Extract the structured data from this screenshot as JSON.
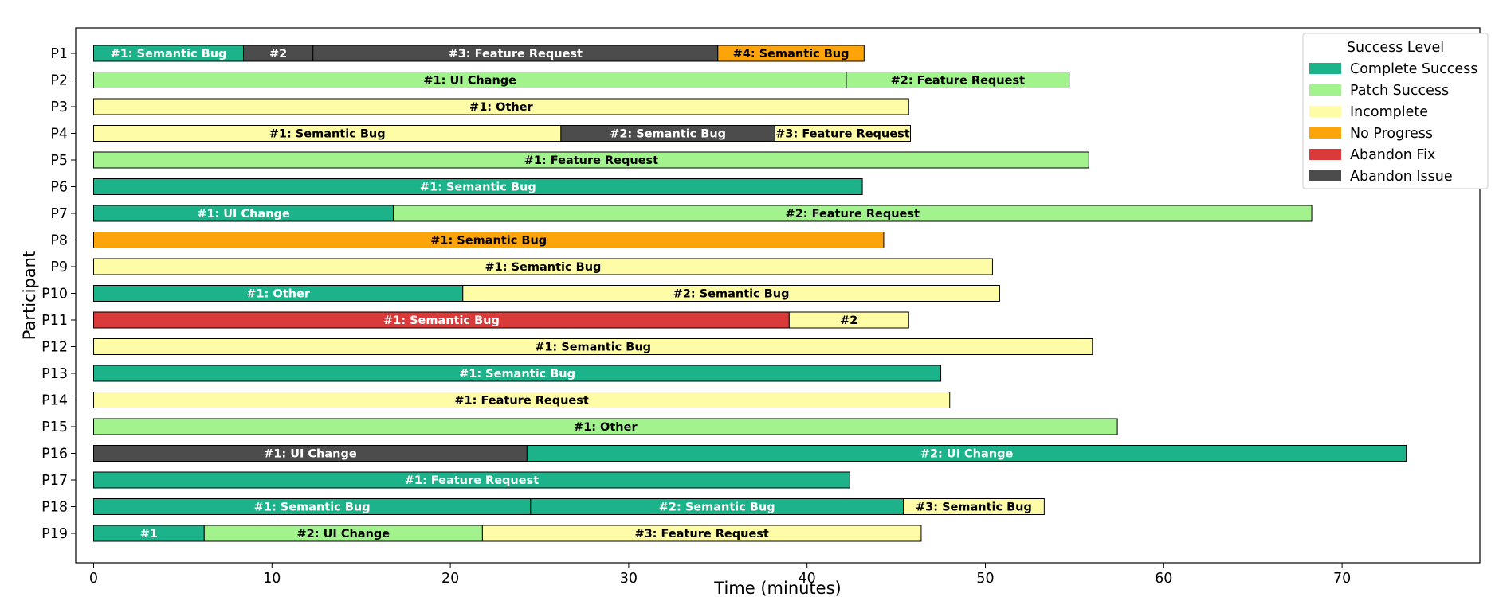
{
  "chart_data": {
    "type": "gantt",
    "title": "",
    "xlabel": "Time (minutes)",
    "ylabel": "Participant",
    "xlim": [
      -1,
      78.5
    ],
    "xticks": [
      0,
      10,
      20,
      30,
      40,
      50,
      60,
      70
    ],
    "legend": {
      "title": "Success Level",
      "position": "top-right",
      "entries": [
        {
          "label": "Complete Success",
          "color": "#1cb38a"
        },
        {
          "label": "Patch Success",
          "color": "#a2f28e"
        },
        {
          "label": "Incomplete",
          "color": "#fefca6"
        },
        {
          "label": "No Progress",
          "color": "#fda40a"
        },
        {
          "label": "Abandon Fix",
          "color": "#db3a3a"
        },
        {
          "label": "Abandon Issue",
          "color": "#4c4c4c"
        }
      ]
    },
    "participants": [
      {
        "name": "P1",
        "segments": [
          {
            "label": "#1: Semantic Bug",
            "start": 0,
            "end": 8.4,
            "status": "Complete Success"
          },
          {
            "label": "#2",
            "start": 8.4,
            "end": 12.3,
            "status": "Abandon Issue"
          },
          {
            "label": "#3: Feature Request",
            "start": 12.3,
            "end": 35.0,
            "status": "Abandon Issue"
          },
          {
            "label": "#4: Semantic Bug",
            "start": 35.0,
            "end": 43.2,
            "status": "No Progress"
          }
        ]
      },
      {
        "name": "P2",
        "segments": [
          {
            "label": "#1: UI Change",
            "start": 0,
            "end": 42.2,
            "status": "Patch Success"
          },
          {
            "label": "#2: Feature Request",
            "start": 42.2,
            "end": 54.7,
            "status": "Patch Success"
          }
        ]
      },
      {
        "name": "P3",
        "segments": [
          {
            "label": "#1: Other",
            "start": 0,
            "end": 45.7,
            "status": "Incomplete"
          }
        ]
      },
      {
        "name": "P4",
        "segments": [
          {
            "label": "#1: Semantic Bug",
            "start": 0,
            "end": 26.2,
            "status": "Incomplete"
          },
          {
            "label": "#2: Semantic Bug",
            "start": 26.2,
            "end": 38.2,
            "status": "Abandon Issue"
          },
          {
            "label": "#3: Feature Request",
            "start": 38.2,
            "end": 45.8,
            "status": "Incomplete"
          }
        ]
      },
      {
        "name": "P5",
        "segments": [
          {
            "label": "#1: Feature Request",
            "start": 0,
            "end": 55.8,
            "status": "Patch Success"
          }
        ]
      },
      {
        "name": "P6",
        "segments": [
          {
            "label": "#1: Semantic Bug",
            "start": 0,
            "end": 43.1,
            "status": "Complete Success"
          }
        ]
      },
      {
        "name": "P7",
        "segments": [
          {
            "label": "#1: UI Change",
            "start": 0,
            "end": 16.8,
            "status": "Complete Success"
          },
          {
            "label": "#2: Feature Request",
            "start": 16.8,
            "end": 68.3,
            "status": "Patch Success"
          }
        ]
      },
      {
        "name": "P8",
        "segments": [
          {
            "label": "#1: Semantic Bug",
            "start": 0,
            "end": 44.3,
            "status": "No Progress"
          }
        ]
      },
      {
        "name": "P9",
        "segments": [
          {
            "label": "#1: Semantic Bug",
            "start": 0,
            "end": 50.4,
            "status": "Incomplete"
          }
        ]
      },
      {
        "name": "P10",
        "segments": [
          {
            "label": "#1: Other",
            "start": 0,
            "end": 20.7,
            "status": "Complete Success"
          },
          {
            "label": "#2: Semantic Bug",
            "start": 20.7,
            "end": 50.8,
            "status": "Incomplete"
          }
        ]
      },
      {
        "name": "P11",
        "segments": [
          {
            "label": "#1: Semantic Bug",
            "start": 0,
            "end": 39.0,
            "status": "Abandon Fix"
          },
          {
            "label": "#2",
            "start": 39.0,
            "end": 45.7,
            "status": "Incomplete"
          }
        ]
      },
      {
        "name": "P12",
        "segments": [
          {
            "label": "#1: Semantic Bug",
            "start": 0,
            "end": 56.0,
            "status": "Incomplete"
          }
        ]
      },
      {
        "name": "P13",
        "segments": [
          {
            "label": "#1: Semantic Bug",
            "start": 0,
            "end": 47.5,
            "status": "Complete Success"
          }
        ]
      },
      {
        "name": "P14",
        "segments": [
          {
            "label": "#1: Feature Request",
            "start": 0,
            "end": 48.0,
            "status": "Incomplete"
          }
        ]
      },
      {
        "name": "P15",
        "segments": [
          {
            "label": "#1: Other",
            "start": 0,
            "end": 57.4,
            "status": "Patch Success"
          }
        ]
      },
      {
        "name": "P16",
        "segments": [
          {
            "label": "#1: UI Change",
            "start": 0,
            "end": 24.3,
            "status": "Abandon Issue"
          },
          {
            "label": "#2: UI Change",
            "start": 24.3,
            "end": 73.6,
            "status": "Complete Success"
          }
        ]
      },
      {
        "name": "P17",
        "segments": [
          {
            "label": "#1: Feature Request",
            "start": 0,
            "end": 42.4,
            "status": "Complete Success"
          }
        ]
      },
      {
        "name": "P18",
        "segments": [
          {
            "label": "#1: Semantic Bug",
            "start": 0,
            "end": 24.5,
            "status": "Complete Success"
          },
          {
            "label": "#2: Semantic Bug",
            "start": 24.5,
            "end": 45.4,
            "status": "Complete Success"
          },
          {
            "label": "#3: Semantic Bug",
            "start": 45.4,
            "end": 53.3,
            "status": "Incomplete"
          }
        ]
      },
      {
        "name": "P19",
        "segments": [
          {
            "label": "#1",
            "start": 0,
            "end": 6.2,
            "status": "Complete Success"
          },
          {
            "label": "#2: UI Change",
            "start": 6.2,
            "end": 21.8,
            "status": "Patch Success"
          },
          {
            "label": "#3: Feature Request",
            "start": 21.8,
            "end": 46.4,
            "status": "Incomplete"
          }
        ]
      }
    ]
  }
}
